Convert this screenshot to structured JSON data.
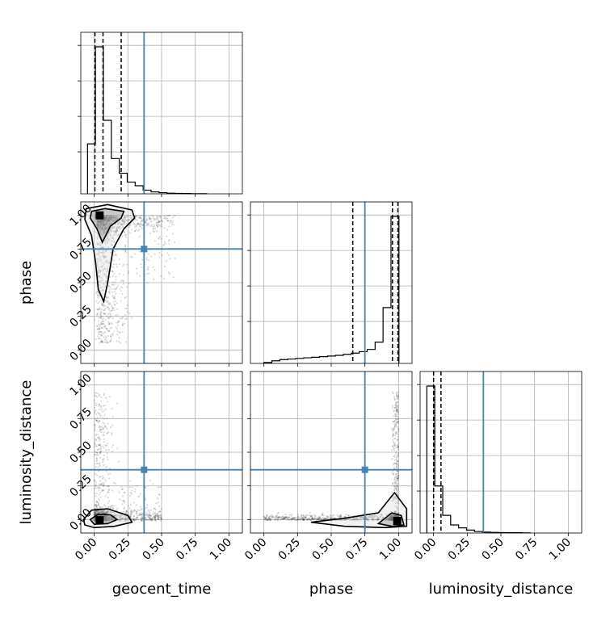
{
  "chart_data": {
    "type": "corner",
    "parameters": [
      "geocent_time",
      "phase",
      "luminosity_distance"
    ],
    "truths": {
      "geocent_time": 0.37,
      "phase": 0.75,
      "luminosity_distance": 0.37
    },
    "tick_labels": [
      "0.00",
      "0.25",
      "0.50",
      "0.75",
      "1.00"
    ],
    "axis_range": [
      -0.1,
      1.1
    ],
    "grid": true,
    "truth_color": "#4682b4",
    "histograms": {
      "geocent_time": {
        "bin_width": 0.0589,
        "bin_starts": [
          -0.05,
          0.009,
          0.068,
          0.127,
          0.186,
          0.245,
          0.304,
          0.363,
          0.422,
          0.481,
          0.54,
          0.599,
          0.658,
          0.717,
          0.776
        ],
        "heights": [
          0.34,
          1.0,
          0.5,
          0.24,
          0.14,
          0.08,
          0.055,
          0.025,
          0.013,
          0.008,
          0.004,
          0.003,
          0.002,
          0.001,
          0.001
        ],
        "quantiles": [
          0.005,
          0.065,
          0.2
        ]
      },
      "phase": {
        "bin_width": 0.0589,
        "bin_starts": [
          0.0,
          0.059,
          0.118,
          0.177,
          0.236,
          0.295,
          0.354,
          0.413,
          0.472,
          0.531,
          0.59,
          0.649,
          0.708,
          0.767,
          0.826,
          0.885,
          0.944
        ],
        "heights": [
          0.006,
          0.018,
          0.026,
          0.03,
          0.034,
          0.038,
          0.042,
          0.046,
          0.05,
          0.055,
          0.062,
          0.07,
          0.08,
          0.095,
          0.145,
          0.38,
          1.0
        ],
        "quantiles": [
          0.66,
          0.955,
          0.995
        ]
      },
      "luminosity_distance": {
        "bin_width": 0.0589,
        "bin_starts": [
          -0.05,
          0.009,
          0.068,
          0.127,
          0.186,
          0.245,
          0.304,
          0.363,
          0.422,
          0.481,
          0.54,
          0.599,
          0.658
        ],
        "heights": [
          1.0,
          0.32,
          0.12,
          0.055,
          0.035,
          0.02,
          0.01,
          0.006,
          0.004,
          0.003,
          0.002,
          0.002,
          0.001
        ],
        "quantiles": [
          0.0,
          0.055
        ]
      }
    },
    "panels_2d": [
      {
        "x": "geocent_time",
        "y": "phase"
      },
      {
        "x": "geocent_time",
        "y": "luminosity_distance"
      },
      {
        "x": "phase",
        "y": "luminosity_distance"
      }
    ]
  }
}
